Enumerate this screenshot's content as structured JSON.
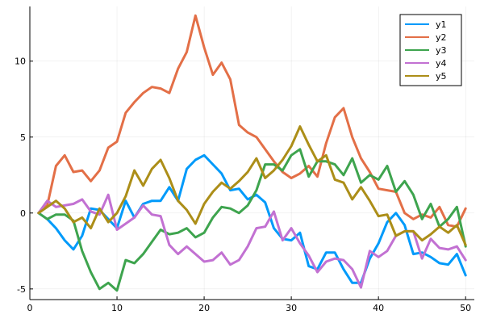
{
  "chart_data": {
    "type": "line",
    "title": "",
    "xlabel": "",
    "ylabel": "",
    "xlim": [
      0,
      51
    ],
    "ylim": [
      -5.7,
      13.6
    ],
    "x_ticks": [
      0,
      10,
      20,
      30,
      40,
      50
    ],
    "y_ticks": [
      -5,
      0,
      5,
      10
    ],
    "grid": true,
    "legend_position": "top-right",
    "x": [
      1,
      2,
      3,
      4,
      5,
      6,
      7,
      8,
      9,
      10,
      11,
      12,
      13,
      14,
      15,
      16,
      17,
      18,
      19,
      20,
      21,
      22,
      23,
      24,
      25,
      26,
      27,
      28,
      29,
      30,
      31,
      32,
      33,
      34,
      35,
      36,
      37,
      38,
      39,
      40,
      41,
      42,
      43,
      44,
      45,
      46,
      47,
      48,
      49,
      50
    ],
    "series": [
      {
        "name": "y1",
        "color": "#009AFA",
        "values": [
          0,
          -0.4,
          -1.0,
          -1.8,
          -2.4,
          -1.5,
          0.3,
          0.2,
          -0.4,
          -1.0,
          0.8,
          -0.3,
          0.6,
          0.8,
          0.8,
          1.7,
          0.8,
          2.9,
          3.5,
          3.8,
          3.2,
          2.6,
          1.5,
          1.6,
          0.9,
          1.2,
          0.7,
          -1.0,
          -1.7,
          -1.8,
          -1.3,
          -3.5,
          -3.7,
          -2.6,
          -2.6,
          -3.7,
          -4.6,
          -4.6,
          -3.0,
          -2.0,
          -0.6,
          0.0,
          -0.8,
          -2.7,
          -2.6,
          -2.9,
          -3.3,
          -3.4,
          -2.7,
          -4.1
        ]
      },
      {
        "name": "y2",
        "color": "#E36F47",
        "values": [
          0,
          0.5,
          3.1,
          3.8,
          2.7,
          2.8,
          2.1,
          2.8,
          4.3,
          4.7,
          6.6,
          7.3,
          7.9,
          8.3,
          8.2,
          7.9,
          9.5,
          10.6,
          13.0,
          10.9,
          9.1,
          9.9,
          8.8,
          5.8,
          5.3,
          5.0,
          4.2,
          3.4,
          2.7,
          2.3,
          2.6,
          3.1,
          2.4,
          4.6,
          6.3,
          6.9,
          5.0,
          3.6,
          2.7,
          1.6,
          1.5,
          1.4,
          0.0,
          -0.4,
          -0.1,
          -0.3,
          0.4,
          -0.8,
          -0.9,
          0.3
        ]
      },
      {
        "name": "y3",
        "color": "#3EA44E",
        "values": [
          0,
          -0.4,
          -0.1,
          -0.1,
          -0.5,
          -2.5,
          -3.9,
          -5.0,
          -4.6,
          -5.1,
          -3.1,
          -3.3,
          -2.7,
          -1.9,
          -1.1,
          -1.4,
          -1.3,
          -1.0,
          -1.6,
          -1.3,
          -0.3,
          0.4,
          0.3,
          0.0,
          0.5,
          1.5,
          3.2,
          3.2,
          2.8,
          3.8,
          4.2,
          2.4,
          3.4,
          3.4,
          3.2,
          2.5,
          3.6,
          2.0,
          2.5,
          2.2,
          3.1,
          1.4,
          2.1,
          1.2,
          -0.4,
          0.6,
          -0.9,
          -0.4,
          0.4,
          -2.2
        ]
      },
      {
        "name": "y4",
        "color": "#C271D2",
        "values": [
          0,
          0.8,
          0.4,
          0.5,
          0.6,
          0.9,
          0.1,
          -0.1,
          1.2,
          -1.1,
          -0.7,
          -0.3,
          0.5,
          -0.1,
          -0.2,
          -2.1,
          -2.7,
          -2.2,
          -2.7,
          -3.2,
          -3.1,
          -2.6,
          -3.4,
          -3.1,
          -2.2,
          -1.0,
          -0.9,
          0.1,
          -1.8,
          -1.0,
          -2.0,
          -2.8,
          -3.9,
          -3.2,
          -3.0,
          -3.1,
          -3.7,
          -4.9,
          -2.5,
          -2.9,
          -2.5,
          -1.5,
          -1.2,
          -1.2,
          -3.0,
          -1.7,
          -2.3,
          -2.4,
          -2.2,
          -3.1
        ]
      },
      {
        "name": "y5",
        "color": "#AC8E18",
        "values": [
          0,
          0.4,
          0.8,
          0.3,
          -0.6,
          -0.3,
          -1.0,
          0.3,
          -0.6,
          0.0,
          1.1,
          2.8,
          1.8,
          2.9,
          3.5,
          2.3,
          0.8,
          0.2,
          -0.7,
          0.6,
          1.4,
          2.0,
          1.6,
          2.1,
          2.7,
          3.6,
          2.3,
          2.8,
          3.5,
          4.4,
          5.7,
          4.5,
          3.4,
          3.8,
          2.2,
          2.0,
          0.9,
          1.7,
          0.8,
          -0.2,
          -0.1,
          -1.5,
          -1.2,
          -1.2,
          -1.8,
          -1.4,
          -0.9,
          -1.3,
          -0.8,
          -2.1
        ]
      }
    ]
  }
}
